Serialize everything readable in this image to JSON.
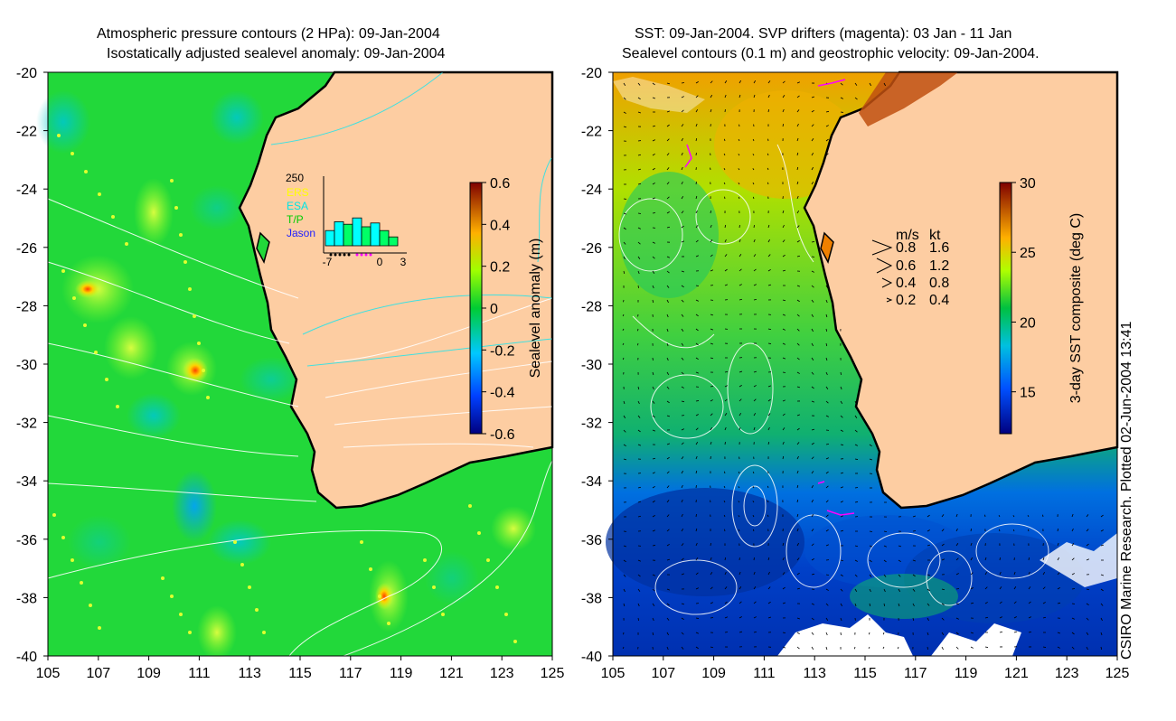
{
  "left_panel": {
    "title_line1": "Atmospheric pressure contours (2 HPa): 09-Jan-2004",
    "title_line2": "Isostatically adjusted sealevel anomaly: 09-Jan-2004",
    "colorbar_label": "Sealevel anomaly (m)",
    "colorbar_ticks": [
      "0.6",
      "0.4",
      "0.2",
      "0",
      "-0.2",
      "-0.4",
      "-0.6"
    ],
    "inset": {
      "y_max_label": "250",
      "legend": [
        "ERS",
        "ESA",
        "T/P",
        "Jason"
      ],
      "legend_colors": [
        "#ffff00",
        "#00e5e5",
        "#00cc00",
        "#2020ff"
      ],
      "x_labels": [
        "-7",
        "0",
        "3"
      ],
      "bars": [
        60,
        95,
        85,
        110,
        75,
        90,
        60,
        35
      ],
      "bar_colors": [
        "#00ffff",
        "#00ffff",
        "#00ff66",
        "#00ffff",
        "#00ff66",
        "#00ffff",
        "#00ff66",
        "#00ff66"
      ]
    }
  },
  "right_panel": {
    "title_line1": "SST: 09-Jan-2004. SVP drifters (magenta): 03 Jan - 11 Jan",
    "title_line2": "Sealevel contours (0.1 m) and geostrophic velocity: 09-Jan-2004.",
    "colorbar_label": "3-day SST composite (deg C)",
    "colorbar_ticks": [
      "30",
      "25",
      "20",
      "15"
    ],
    "velocity_legend": {
      "header_ms": "m/s",
      "header_kt": "kt",
      "rows": [
        {
          "ms": "0.8",
          "kt": "1.6"
        },
        {
          "ms": "0.6",
          "kt": "1.2"
        },
        {
          "ms": "0.4",
          "kt": "0.8"
        },
        {
          "ms": "0.2",
          "kt": "0.4"
        }
      ]
    }
  },
  "chart_data": [
    {
      "type": "heatmap",
      "title": "Atmospheric pressure contours (2 HPa): 09-Jan-2004 / Isostatically adjusted sealevel anomaly: 09-Jan-2004",
      "xlabel": "",
      "ylabel": "",
      "xlim": [
        105,
        125
      ],
      "ylim": [
        -40,
        -20
      ],
      "x_ticks": [
        105,
        107,
        109,
        111,
        113,
        115,
        117,
        119,
        121,
        123,
        125
      ],
      "y_ticks": [
        -20,
        -22,
        -24,
        -26,
        -28,
        -30,
        -32,
        -34,
        -36,
        -38,
        -40
      ],
      "colorbar": {
        "label": "Sealevel anomaly (m)",
        "range": [
          -0.6,
          0.6
        ]
      }
    },
    {
      "type": "heatmap",
      "title": "SST: 09-Jan-2004. SVP drifters (magenta): 03 Jan - 11 Jan / Sealevel contours (0.1 m) and geostrophic velocity: 09-Jan-2004.",
      "xlabel": "",
      "ylabel": "",
      "xlim": [
        105,
        125
      ],
      "ylim": [
        -40,
        -20
      ],
      "x_ticks": [
        105,
        107,
        109,
        111,
        113,
        115,
        117,
        119,
        121,
        123,
        125
      ],
      "y_ticks": [
        -20,
        -22,
        -24,
        -26,
        -28,
        -30,
        -32,
        -34,
        -36,
        -38,
        -40
      ],
      "colorbar": {
        "label": "3-day SST composite (deg C)",
        "range": [
          12,
          30
        ]
      }
    }
  ],
  "credit": "CSIRO Marine Research. Plotted 02-Jun-2004 13:41"
}
